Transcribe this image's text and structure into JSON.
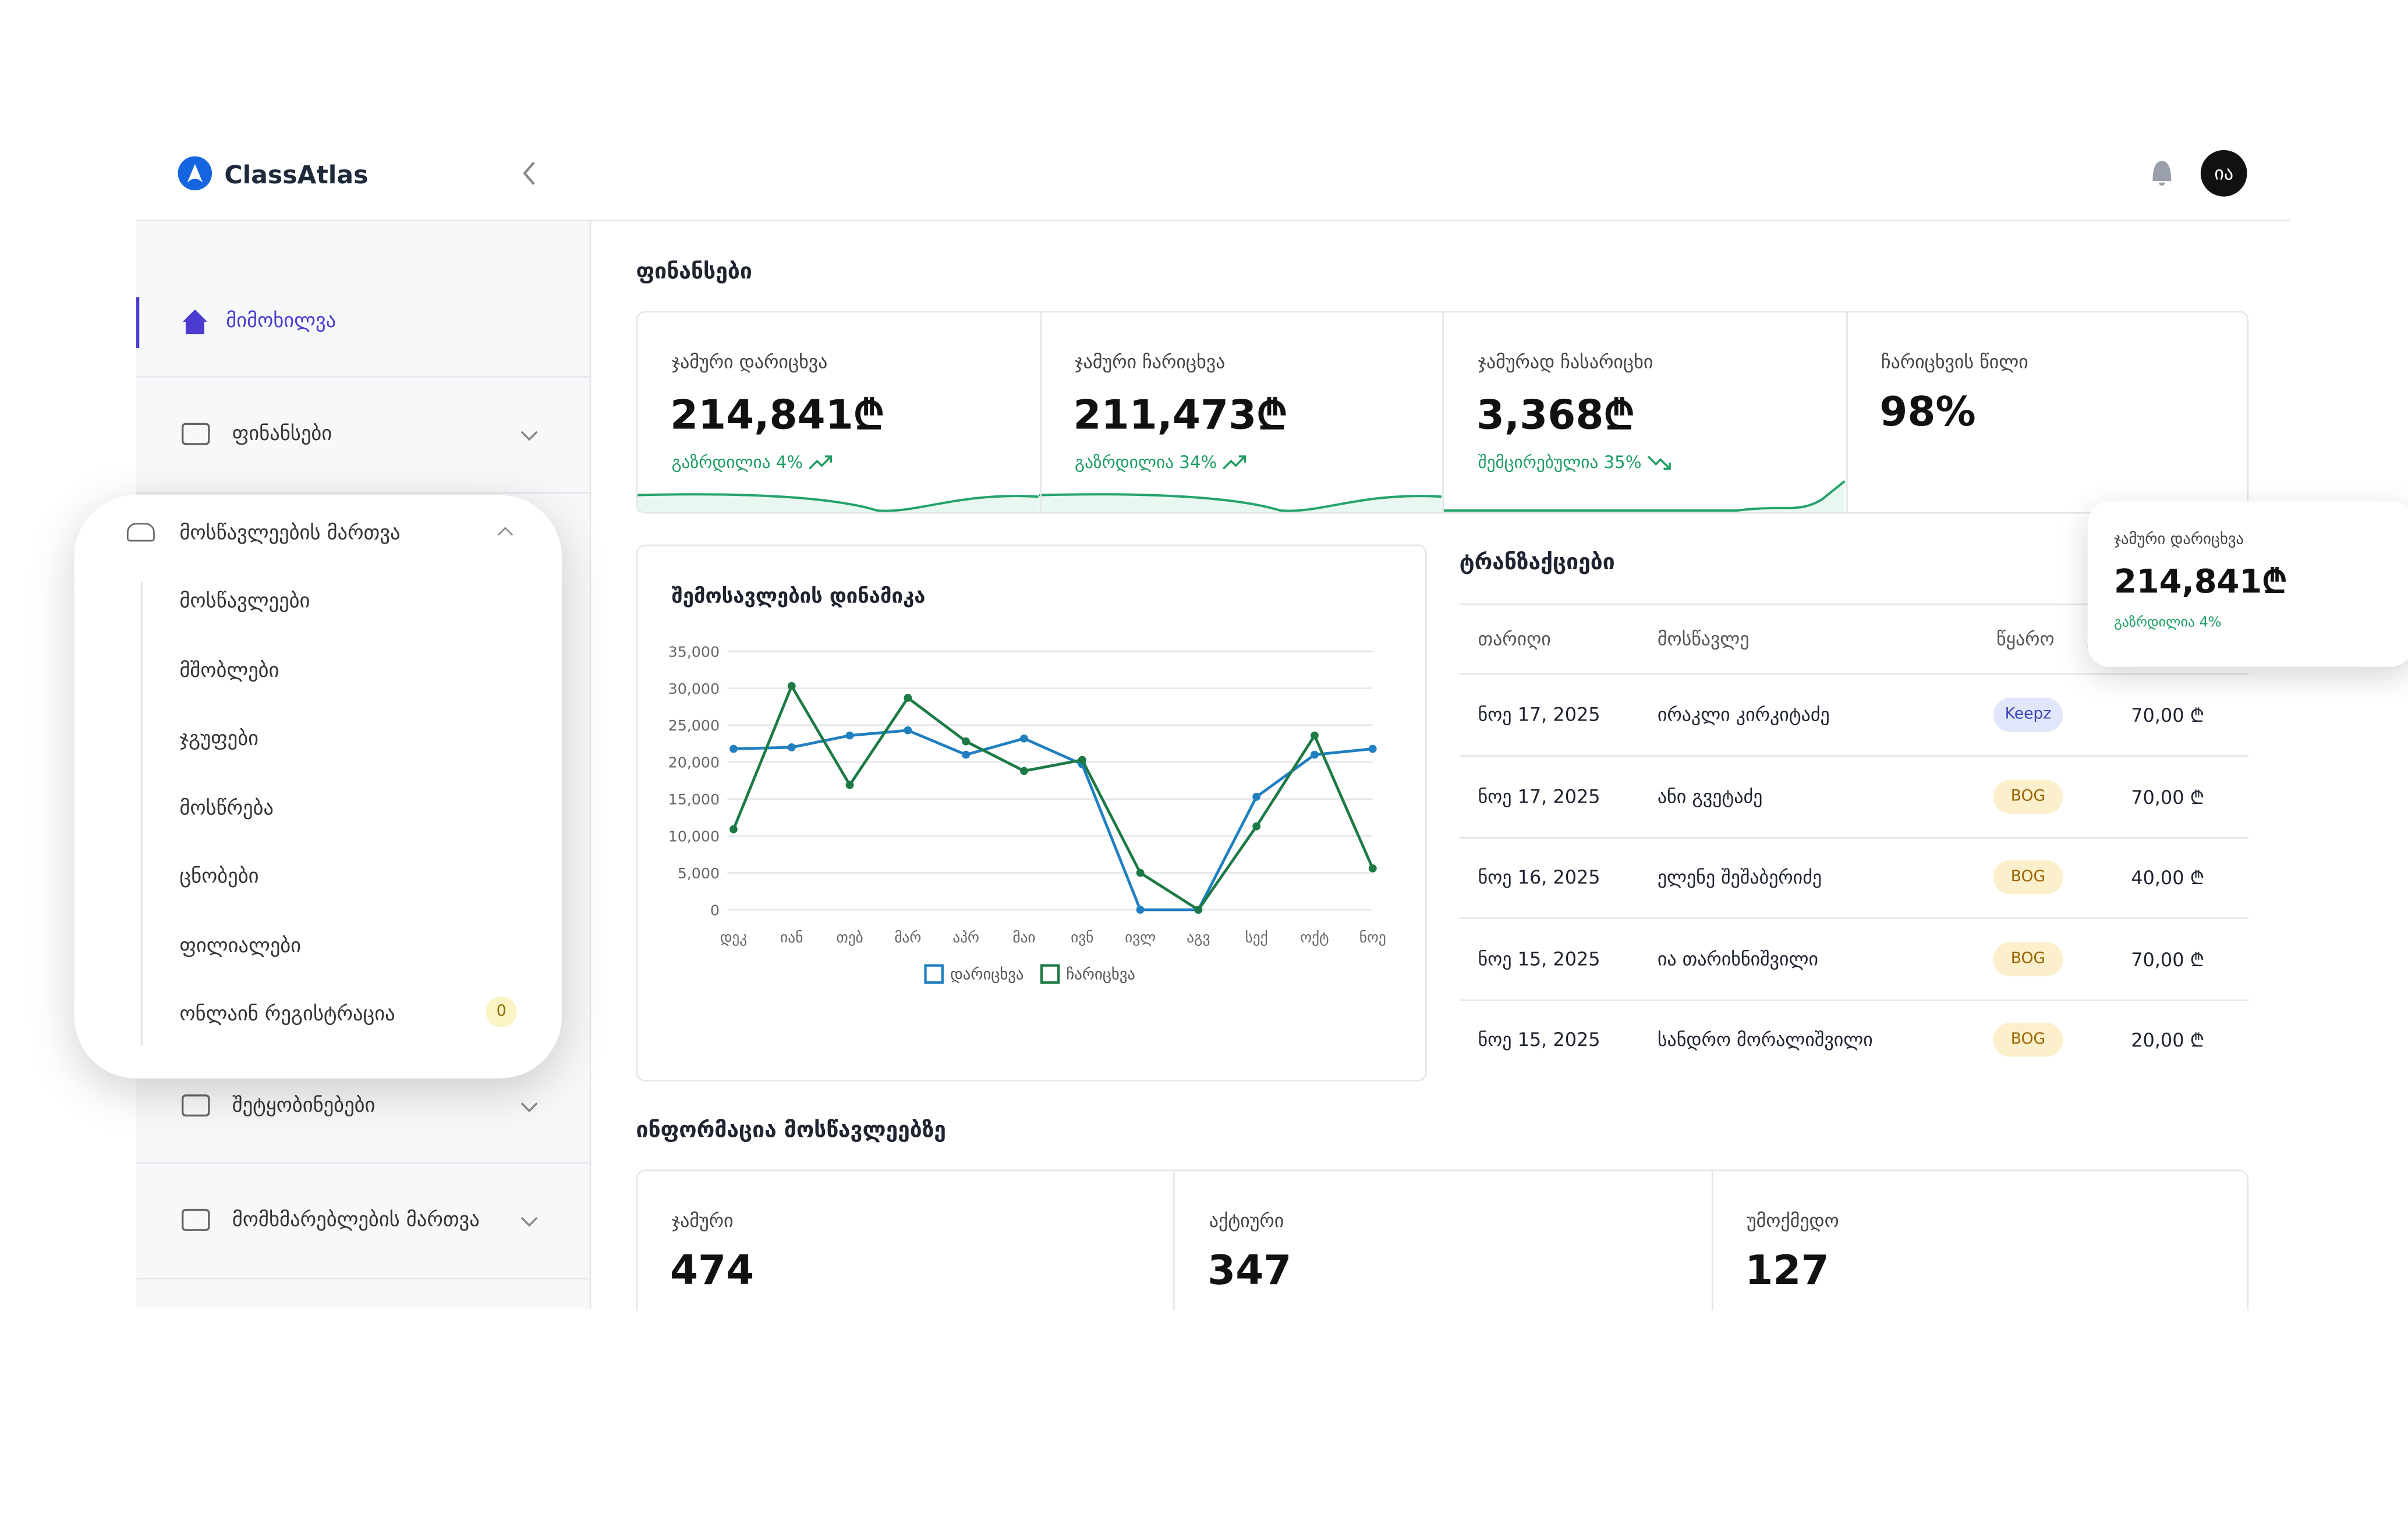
{
  "header": {
    "brand": "ClassAtlas",
    "avatar": "ია"
  },
  "sidebar": {
    "overview": "მიმოხილვა",
    "finances": "ფინანსები",
    "students": {
      "label": "მოსწავლეების მართვა",
      "children": [
        "მოსწავლეები",
        "მშობლები",
        "ჯგუფები",
        "მოსწრება",
        "ცნობები",
        "ფილიალები",
        "ონლაინ რეგისტრაცია"
      ],
      "badge": 0
    },
    "messages": "შეტყობინებები",
    "users": "მომხმარებლების მართვა"
  },
  "finances": {
    "title": "ფინანსები",
    "cards": [
      {
        "label": "ჯამური დარიცხვა",
        "value": "214,841₾",
        "change": "გაზრდილია 4%",
        "trend": "up"
      },
      {
        "label": "ჯამური ჩარიცხვა",
        "value": "211,473₾",
        "change": "გაზრდილია 34%",
        "trend": "up"
      },
      {
        "label": "ჯამურად ჩასარიცხი",
        "value": "3,368₾",
        "change": "შემცირებულია 35%",
        "trend": "down"
      },
      {
        "label": "ჩარიცხვის წილი",
        "value": "98%"
      }
    ]
  },
  "chart": {
    "type": "line",
    "title": "შემოსავლების დინამიკა",
    "categories": [
      "დეკ",
      "იან",
      "თებ",
      "მარ",
      "აპრ",
      "მაი",
      "ივნ",
      "ივლ",
      "აგვ",
      "სექ",
      "ოქტ",
      "ნოე"
    ],
    "series": [
      {
        "name": "დარიცხვა",
        "color": "#1f7fc0",
        "values": [
          21800,
          22000,
          23600,
          24300,
          21000,
          23200,
          19700,
          0,
          0,
          15300,
          21000,
          21800
        ]
      },
      {
        "name": "ჩარიცხვა",
        "color": "#1d7a45",
        "values": [
          10900,
          30300,
          16900,
          28700,
          22800,
          18800,
          20300,
          5000,
          0,
          11300,
          23600,
          5600
        ]
      }
    ],
    "ylim": [
      0,
      35000
    ],
    "yticks": [
      0,
      {
        "value": 5000,
        "label": "5,000"
      },
      {
        "value": 10000,
        "label": "10,000"
      },
      {
        "value": 15000,
        "label": "15,000"
      },
      {
        "value": 20000,
        "label": "20,000"
      },
      {
        "value": 25000,
        "label": "25,000"
      },
      {
        "value": 30000,
        "label": "30,000"
      },
      {
        "value": 35000,
        "label": "35,000"
      }
    ],
    "grid": true
  },
  "transactions": {
    "title": "ტრანზაქციები",
    "columns": [
      "თარიღი",
      "მოსწავლე",
      "წყარო"
    ],
    "rows": [
      [
        "ნოე 17, 2025",
        "ირაკლი კირკიტაძე",
        "Keepz",
        "70,00 ₾"
      ],
      [
        "ნოე 17, 2025",
        "ანი გვეტაძე",
        "BOG",
        "70,00 ₾"
      ],
      [
        "ნოე 16, 2025",
        "ელენე შეშაბერიძე",
        "BOG",
        "40,00 ₾"
      ],
      [
        "ნოე 15, 2025",
        "ია თარიხნიშვილი",
        "BOG",
        "70,00 ₾"
      ],
      [
        "ნოე 15, 2025",
        "სანდრო მორალიშვილი",
        "BOG",
        "20,00 ₾"
      ]
    ]
  },
  "popup": {
    "label": "ჯამური დარიცხვა",
    "value": "214,841₾",
    "change": "გაზრდილია 4%"
  },
  "students_info": {
    "title": "ინფორმაცია მოსწავლეებზე",
    "cards": [
      {
        "label": "ჯამური",
        "value": 474
      },
      {
        "label": "აქტიური",
        "value": 347
      },
      {
        "label": "უმოქმედო",
        "value": 127
      }
    ]
  }
}
